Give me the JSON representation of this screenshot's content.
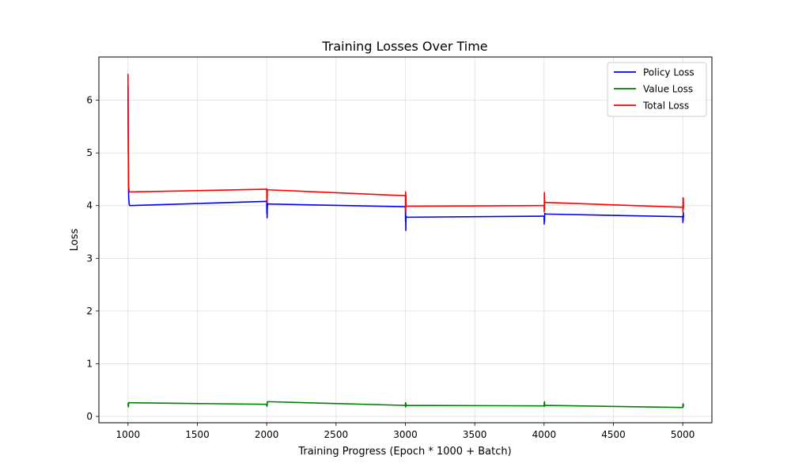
{
  "chart_data": {
    "type": "line",
    "title": "Training Losses Over Time",
    "xlabel": "Training Progress (Epoch * 1000 + Batch)",
    "ylabel": "Loss",
    "xlim": [
      790,
      5210
    ],
    "ylim": [
      -0.12,
      6.82
    ],
    "xticks": [
      1000,
      1500,
      2000,
      2500,
      3000,
      3500,
      4000,
      4500,
      5000
    ],
    "xtick_labels": [
      "1000",
      "1500",
      "2000",
      "2500",
      "3000",
      "3500",
      "4000",
      "4500",
      "5000"
    ],
    "yticks": [
      0,
      1,
      2,
      3,
      4,
      5,
      6
    ],
    "ytick_labels": [
      "0",
      "1",
      "2",
      "3",
      "4",
      "5",
      "6"
    ],
    "grid": true,
    "legend_position": "top-right",
    "series": [
      {
        "name": "Policy Loss",
        "color": "#0000ff",
        "x": [
          1000,
          1001,
          1002,
          1003,
          1004,
          1005,
          1008,
          1010,
          1015,
          1985,
          1990,
          1995,
          2000,
          2001,
          2002,
          2003,
          2004,
          2005,
          2008,
          2010,
          2015,
          2985,
          2990,
          2995,
          3000,
          3001,
          3002,
          3003,
          3004,
          3005,
          3008,
          3010,
          3015,
          3985,
          3990,
          3995,
          4000,
          4001,
          4002,
          4003,
          4004,
          4005,
          4008,
          4010,
          4015,
          4985,
          4990,
          4995,
          5000,
          5001,
          5002,
          5003,
          5004,
          5005,
          5008,
          5010
        ],
        "y": [
          6.28,
          5.6,
          5.0,
          4.6,
          4.3,
          4.15,
          4.05,
          4.01,
          4.0,
          4.08,
          4.08,
          4.08,
          4.09,
          3.85,
          3.97,
          3.77,
          3.93,
          4.0,
          4.04,
          4.03,
          4.03,
          3.98,
          3.98,
          3.98,
          3.98,
          3.7,
          3.88,
          3.53,
          3.75,
          3.8,
          3.78,
          3.78,
          3.78,
          3.8,
          3.8,
          3.8,
          3.8,
          3.65,
          3.78,
          3.7,
          3.82,
          3.85,
          3.85,
          3.84,
          3.84,
          3.79,
          3.79,
          3.79,
          3.79,
          3.68,
          3.82,
          3.72,
          3.87,
          3.8,
          3.79,
          3.79
        ]
      },
      {
        "name": "Value Loss",
        "color": "#008000",
        "x": [
          1000,
          1001,
          1002,
          1003,
          1004,
          1005,
          1008,
          1010,
          1985,
          1990,
          1995,
          2000,
          2001,
          2002,
          2003,
          2004,
          2005,
          2008,
          2985,
          2990,
          2995,
          3000,
          3001,
          3002,
          3003,
          3004,
          3005,
          3008,
          3985,
          3990,
          3995,
          4000,
          4001,
          4002,
          4003,
          4004,
          4005,
          4008,
          4985,
          4990,
          4995,
          5000,
          5001,
          5002,
          5003,
          5004,
          5005,
          5008
        ],
        "y": [
          0.25,
          0.2,
          0.24,
          0.18,
          0.23,
          0.26,
          0.26,
          0.26,
          0.23,
          0.23,
          0.23,
          0.23,
          0.19,
          0.24,
          0.2,
          0.25,
          0.28,
          0.28,
          0.21,
          0.21,
          0.21,
          0.21,
          0.26,
          0.18,
          0.25,
          0.19,
          0.21,
          0.21,
          0.2,
          0.2,
          0.2,
          0.2,
          0.26,
          0.19,
          0.28,
          0.2,
          0.21,
          0.21,
          0.17,
          0.17,
          0.17,
          0.17,
          0.23,
          0.18,
          0.24,
          0.19,
          0.22,
          0.22
        ]
      },
      {
        "name": "Total Loss",
        "color": "#ff0000",
        "x": [
          1000,
          1001,
          1002,
          1003,
          1004,
          1005,
          1008,
          1010,
          1015,
          1985,
          1990,
          1995,
          2000,
          2001,
          2002,
          2003,
          2004,
          2005,
          2008,
          2010,
          2985,
          2990,
          2995,
          3000,
          3001,
          3002,
          3003,
          3004,
          3005,
          3008,
          3010,
          3985,
          3990,
          3995,
          4000,
          4001,
          4002,
          4003,
          4004,
          4005,
          4008,
          4010,
          4985,
          4990,
          4995,
          5000,
          5001,
          5002,
          5003,
          5004,
          5005,
          5008,
          5010
        ],
        "y": [
          6.5,
          5.8,
          5.2,
          4.8,
          4.5,
          4.35,
          4.28,
          4.26,
          4.26,
          4.31,
          4.31,
          4.31,
          4.32,
          4.1,
          4.28,
          4.05,
          4.25,
          4.3,
          4.3,
          4.3,
          4.19,
          4.19,
          4.19,
          4.19,
          3.95,
          4.26,
          3.88,
          4.2,
          4.0,
          3.99,
          3.99,
          4.0,
          4.0,
          4.0,
          4.0,
          3.88,
          4.25,
          3.92,
          4.1,
          4.06,
          4.06,
          4.06,
          3.97,
          3.97,
          3.97,
          3.97,
          3.88,
          4.15,
          3.92,
          4.14,
          3.98,
          3.97,
          3.97
        ]
      }
    ]
  }
}
